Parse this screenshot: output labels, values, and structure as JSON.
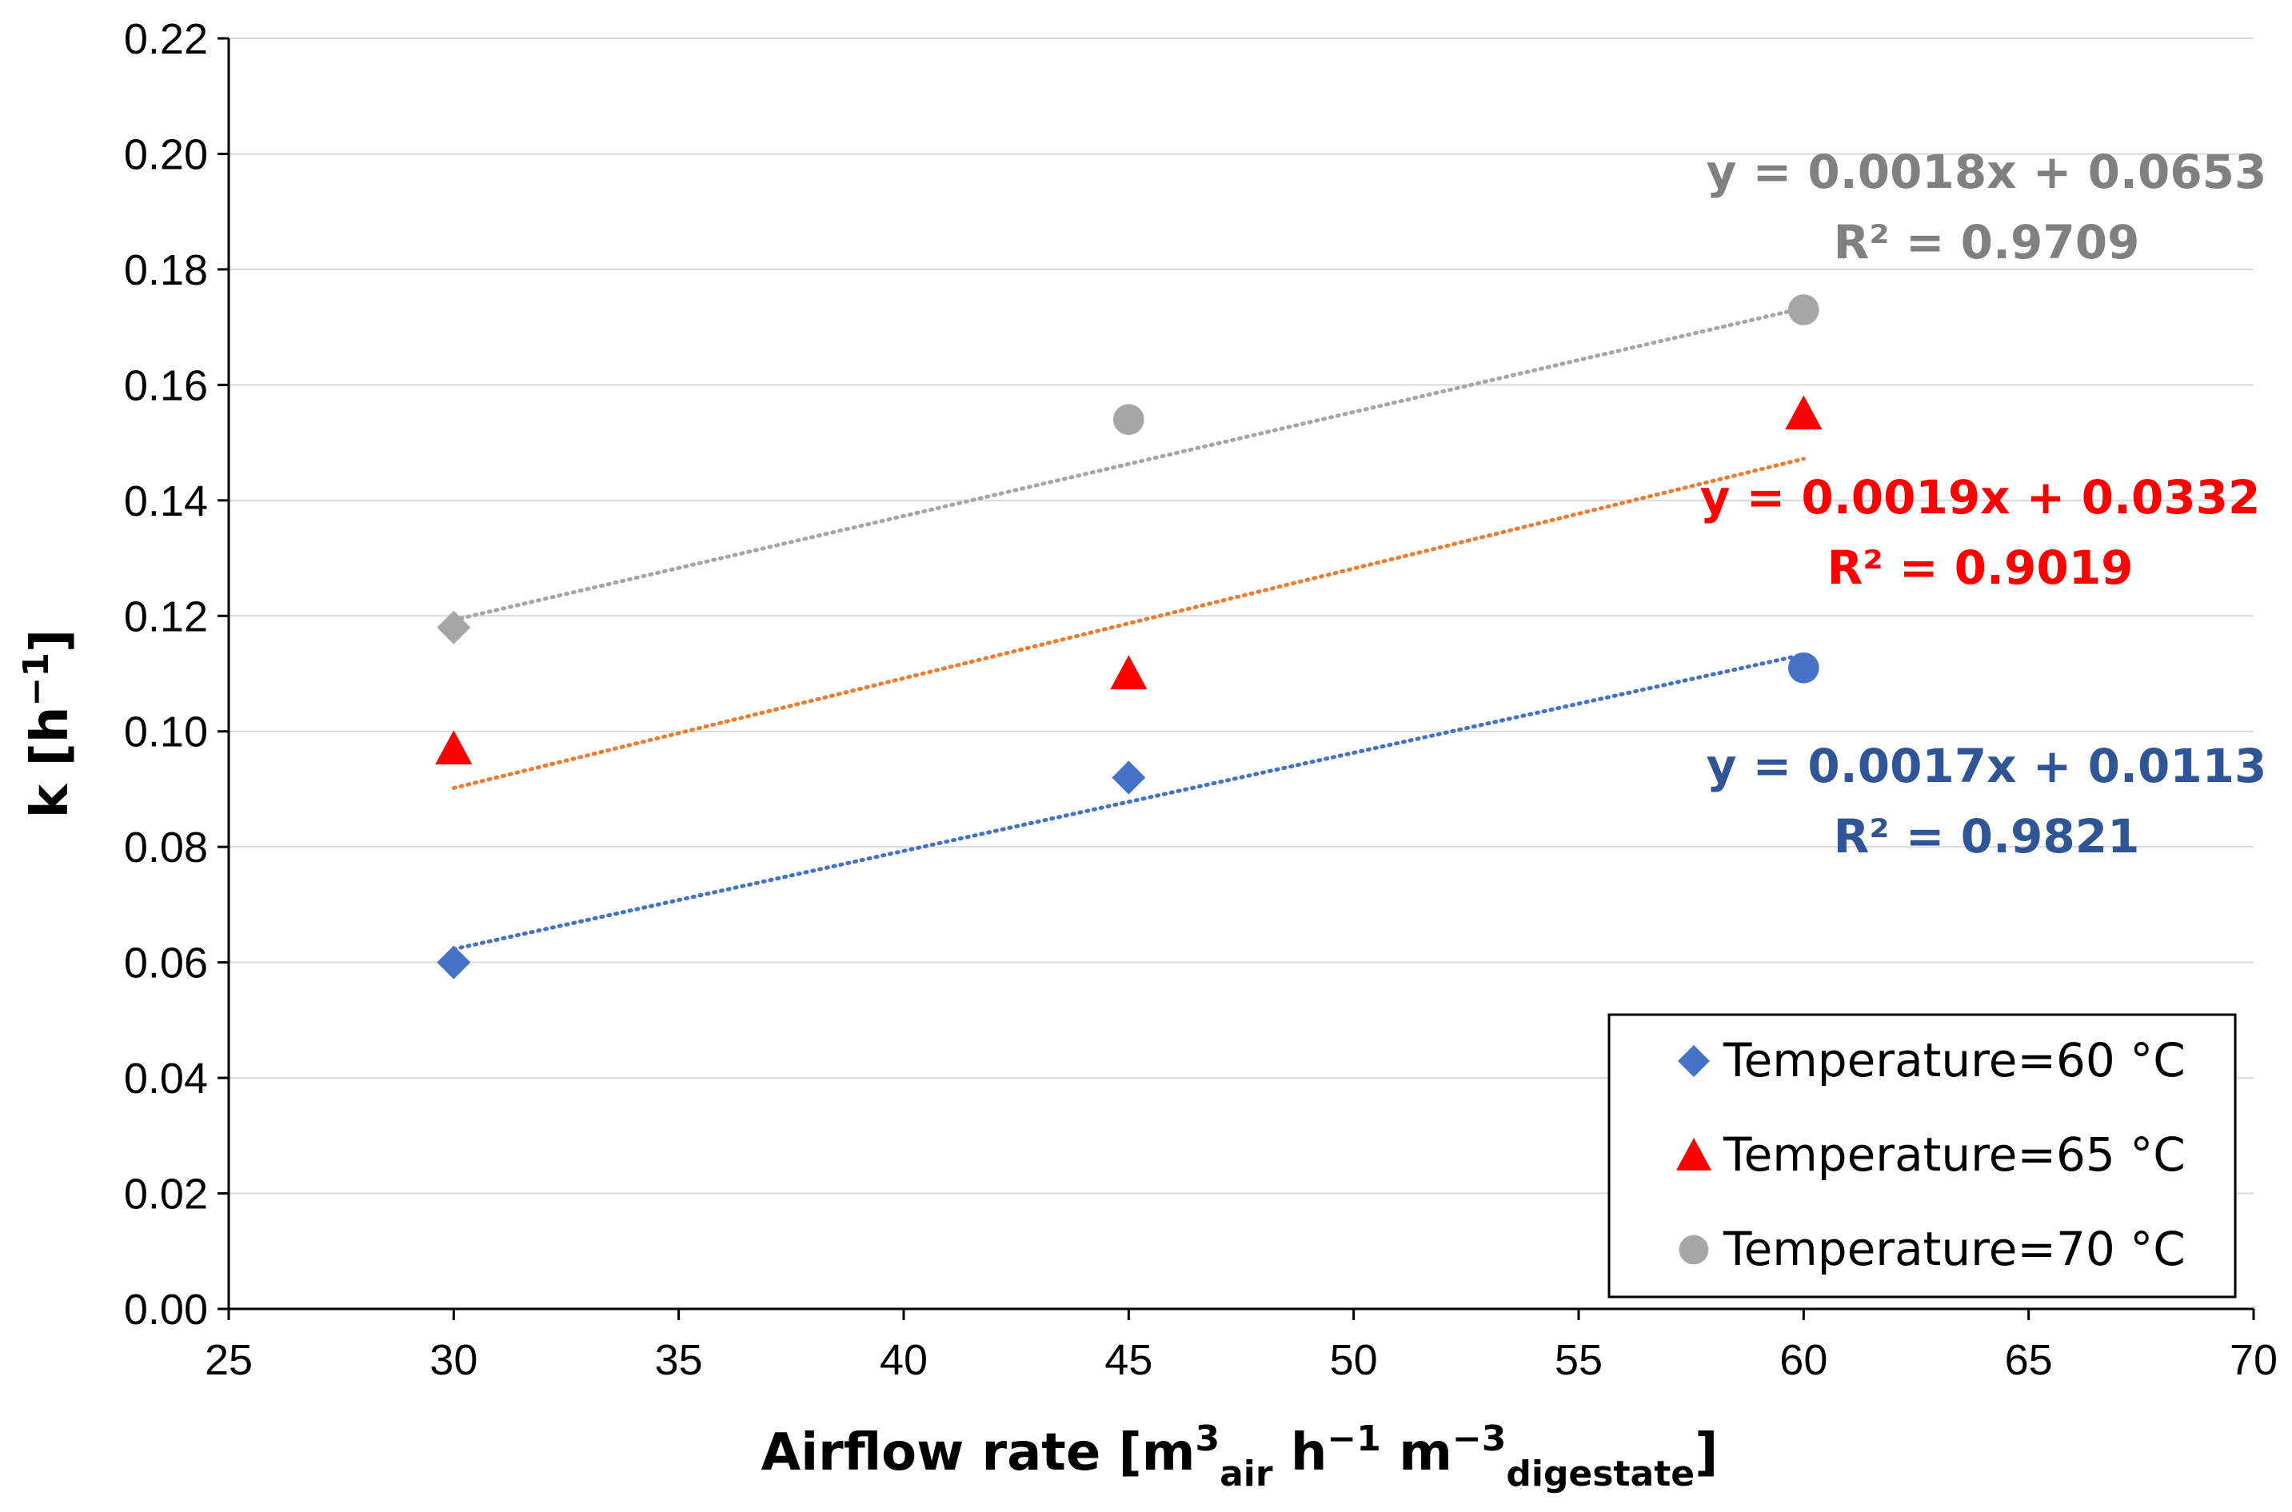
{
  "chart_data": {
    "type": "scatter",
    "xlabel": {
      "main": "Airflow rate [m",
      "sup1": "3",
      "sub1": "air",
      "mid": " h",
      "sup2": "−1",
      "mid2": " m",
      "sup3": "−3",
      "sub2": "digestate",
      "end": "]"
    },
    "ylabel": {
      "main": "k [h",
      "sup": "−1",
      "end": "]"
    },
    "xlim": [
      25,
      70
    ],
    "ylim": [
      0,
      0.22
    ],
    "xticks": [
      "25",
      "30",
      "35",
      "40",
      "45",
      "50",
      "55",
      "60",
      "65",
      "70"
    ],
    "yticks": [
      "0.00",
      "0.02",
      "0.04",
      "0.06",
      "0.08",
      "0.10",
      "0.12",
      "0.14",
      "0.16",
      "0.18",
      "0.20",
      "0.22"
    ],
    "grid": "horizontal",
    "series": [
      {
        "name": "Temperature=60 °C",
        "marker": "diamond",
        "color": "#4472C4",
        "x": [
          30,
          45,
          60
        ],
        "y": [
          0.06,
          0.092,
          0.111
        ],
        "point_markers": [
          "diamond",
          "diamond",
          "circle"
        ],
        "trendline": {
          "slope": 0.0017,
          "intercept": 0.0113,
          "color": "#4472C4"
        },
        "equation": "y = 0.0017x + 0.0113",
        "r2": "R² = 0.9821",
        "label_color": "#2F5597"
      },
      {
        "name": "Temperature=65 °C",
        "marker": "triangle",
        "color": "#FF0000",
        "x": [
          30,
          45,
          60
        ],
        "y": [
          0.097,
          0.11,
          0.155
        ],
        "point_markers": [
          "triangle",
          "triangle",
          "triangle"
        ],
        "trendline": {
          "slope": 0.0019,
          "intercept": 0.0332,
          "color": "#ED7D31"
        },
        "equation": "y = 0.0019x + 0.0332",
        "r2": "R² = 0.9019",
        "label_color": "#FF0000"
      },
      {
        "name": "Temperature=70 °C",
        "marker": "circle",
        "color": "#A6A6A6",
        "x": [
          30,
          45,
          60
        ],
        "y": [
          0.118,
          0.154,
          0.173
        ],
        "point_markers": [
          "diamond",
          "circle",
          "circle"
        ],
        "trendline": {
          "slope": 0.0018,
          "intercept": 0.0653,
          "color": "#A6A6A6"
        },
        "equation": "y = 0.0018x + 0.0653",
        "r2": "R² = 0.9709",
        "label_color": "#808080"
      }
    ],
    "legend_position": "bottom-right"
  }
}
